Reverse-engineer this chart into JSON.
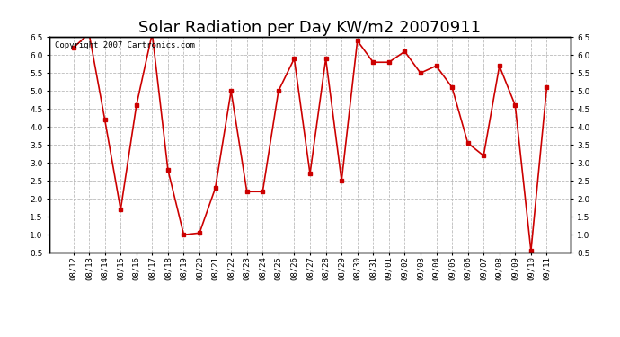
{
  "title": "Solar Radiation per Day KW/m2 20070911",
  "copyright_text": "Copyright 2007 Cartronics.com",
  "labels": [
    "08/12",
    "08/13",
    "08/14",
    "08/15",
    "08/16",
    "08/17",
    "08/18",
    "08/19",
    "08/20",
    "08/21",
    "08/22",
    "08/23",
    "08/24",
    "08/25",
    "08/26",
    "08/27",
    "08/28",
    "08/29",
    "08/30",
    "08/31",
    "09/01",
    "09/02",
    "09/03",
    "09/04",
    "09/05",
    "09/06",
    "09/07",
    "09/08",
    "09/09",
    "09/10",
    "09/11"
  ],
  "values": [
    6.2,
    6.6,
    4.2,
    1.7,
    4.6,
    6.6,
    2.8,
    1.0,
    1.05,
    2.3,
    5.0,
    2.2,
    2.2,
    5.0,
    5.9,
    2.7,
    5.9,
    2.5,
    6.4,
    5.8,
    5.8,
    6.1,
    5.5,
    5.7,
    5.1,
    3.55,
    3.2,
    5.7,
    4.6,
    0.55,
    5.1
  ],
  "line_color": "#cc0000",
  "marker_color": "#cc0000",
  "bg_color": "#ffffff",
  "plot_bg_color": "#ffffff",
  "grid_color": "#bbbbbb",
  "ylim": [
    0.5,
    6.5
  ],
  "yticks": [
    0.5,
    1.0,
    1.5,
    2.0,
    2.5,
    3.0,
    3.5,
    4.0,
    4.5,
    5.0,
    5.5,
    6.0,
    6.5
  ],
  "title_fontsize": 13,
  "copyright_fontsize": 6.5,
  "tick_fontsize": 6.5
}
